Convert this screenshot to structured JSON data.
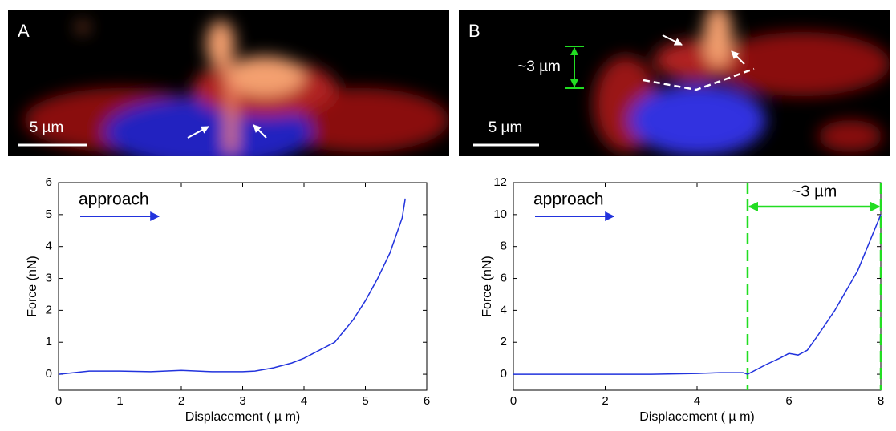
{
  "panels": [
    {
      "label": "A",
      "scale_bar": "5 µm"
    },
    {
      "label": "B",
      "scale_bar": "5 µm",
      "height_label": "~3 µm"
    }
  ],
  "chart_data": [
    {
      "type": "line",
      "annotation": "approach",
      "xlabel": "Displacement ( µ m)",
      "ylabel": "Force (nN)",
      "color": "#2233dd",
      "x": [
        0,
        0.5,
        1,
        1.5,
        2,
        2.5,
        3,
        3.2,
        3.5,
        3.8,
        4,
        4.2,
        4.5,
        4.8,
        5,
        5.2,
        5.4,
        5.6,
        5.65
      ],
      "values": [
        0,
        0.1,
        0.1,
        0.08,
        0.12,
        0.08,
        0.08,
        0.1,
        0.2,
        0.35,
        0.5,
        0.7,
        1.0,
        1.7,
        2.3,
        3.0,
        3.8,
        4.9,
        5.5
      ],
      "xlim": [
        0,
        6
      ],
      "xticks": [
        0,
        1,
        2,
        3,
        4,
        5,
        6
      ],
      "ylim": [
        -0.5,
        6
      ],
      "yticks": [
        0,
        1,
        2,
        3,
        4,
        5,
        6
      ]
    },
    {
      "type": "line",
      "annotation": "approach",
      "span_label": "~3 µm",
      "vlines": [
        5.1,
        8
      ],
      "xlabel": "Displacement ( µ m)",
      "ylabel": "Force (nN)",
      "color": "#2233dd",
      "x": [
        0,
        1,
        2,
        3,
        4,
        4.5,
        5,
        5.1,
        5.5,
        5.8,
        6,
        6.2,
        6.4,
        6.6,
        7,
        7.5,
        8
      ],
      "values": [
        0,
        0,
        0,
        0,
        0.05,
        0.1,
        0.1,
        0,
        0.6,
        1.0,
        1.3,
        1.2,
        1.5,
        2.3,
        4,
        6.5,
        10
      ],
      "xlim": [
        0,
        8
      ],
      "xticks": [
        0,
        2,
        4,
        6,
        8
      ],
      "ylim": [
        -1,
        12
      ],
      "yticks": [
        0,
        2,
        4,
        6,
        8,
        10,
        12
      ]
    }
  ]
}
